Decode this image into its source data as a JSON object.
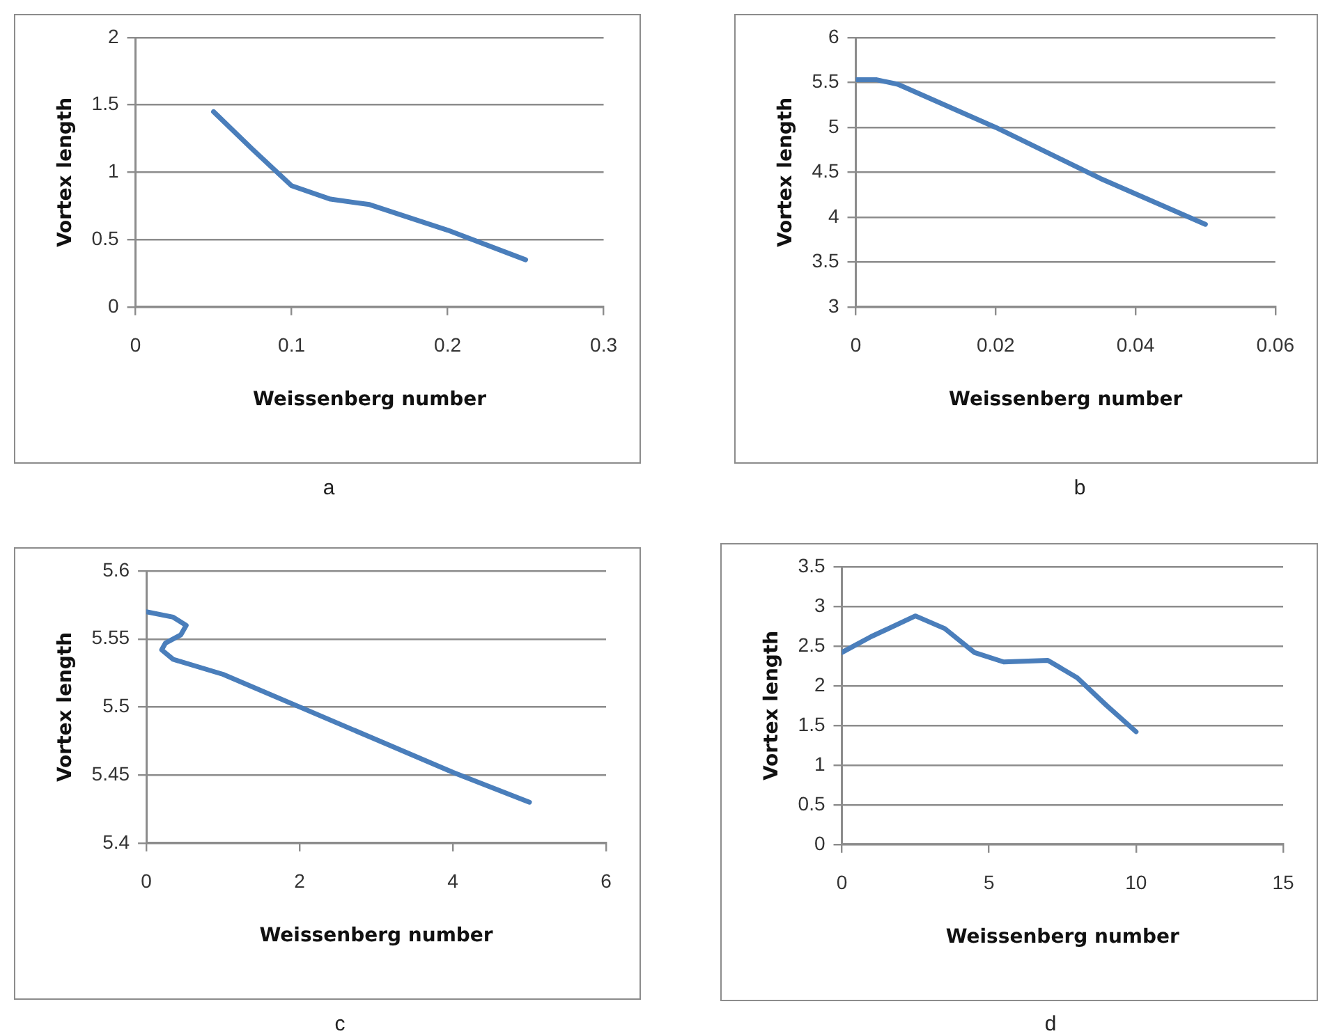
{
  "chart_data": [
    {
      "type": "line",
      "xlabel": "Weissenberg number",
      "ylabel": "Vortex length",
      "x": [
        0.05,
        0.075,
        0.1,
        0.125,
        0.15,
        0.2,
        0.25
      ],
      "series": [
        {
          "color": "#4a7ebb",
          "values": [
            1.45,
            1.17,
            0.9,
            0.8,
            0.76,
            0.57,
            0.35
          ]
        }
      ],
      "xlim": [
        0,
        0.3
      ],
      "xticks": [
        0,
        0.1,
        0.2,
        0.3
      ],
      "ylim": [
        0,
        2
      ],
      "yticks": [
        0,
        0.5,
        1,
        1.5,
        2
      ],
      "grid": "y",
      "marker": "none",
      "line_style": "solid",
      "annotations": [
        "a"
      ]
    },
    {
      "type": "line",
      "xlabel": "Weissenberg number",
      "ylabel": "Vortex length",
      "x": [
        0,
        0.003,
        0.006,
        0.02,
        0.035,
        0.05
      ],
      "series": [
        {
          "color": "#4a7ebb",
          "values": [
            5.53,
            5.53,
            5.48,
            5.0,
            4.43,
            3.92
          ]
        }
      ],
      "xlim": [
        0,
        0.06
      ],
      "xticks": [
        0,
        0.02,
        0.04,
        0.06
      ],
      "ylim": [
        3,
        6
      ],
      "yticks": [
        3,
        3.5,
        4,
        4.5,
        5,
        5.5,
        6
      ],
      "grid": "y",
      "marker": "none",
      "line_style": "solid",
      "annotations": [
        "b"
      ]
    },
    {
      "type": "line",
      "xlabel": "Weissenberg number",
      "ylabel": "Vortex length",
      "x": [
        0,
        0.35,
        0.52,
        0.45,
        0.25,
        0.2,
        0.35,
        1,
        2,
        3,
        4,
        5
      ],
      "series": [
        {
          "color": "#4a7ebb",
          "values": [
            5.57,
            5.566,
            5.56,
            5.553,
            5.547,
            5.542,
            5.535,
            5.524,
            5.5,
            5.476,
            5.452,
            5.43
          ]
        }
      ],
      "xlim": [
        0,
        6
      ],
      "xticks": [
        0,
        2,
        4,
        6
      ],
      "ylim": [
        5.4,
        5.6
      ],
      "yticks": [
        5.4,
        5.45,
        5.5,
        5.55,
        5.6
      ],
      "grid": "y",
      "marker": "none",
      "line_style": "solid",
      "annotations": [
        "c"
      ]
    },
    {
      "type": "line",
      "xlabel": "Weissenberg number",
      "ylabel": "Vortex length",
      "x": [
        0,
        1,
        2.5,
        3.5,
        4.5,
        5.5,
        7,
        8,
        9,
        10
      ],
      "series": [
        {
          "color": "#4a7ebb",
          "values": [
            2.42,
            2.62,
            2.88,
            2.72,
            2.42,
            2.3,
            2.32,
            2.1,
            1.75,
            1.42
          ]
        }
      ],
      "xlim": [
        0,
        15
      ],
      "xticks": [
        0,
        5,
        10,
        15
      ],
      "ylim": [
        0,
        3.5
      ],
      "yticks": [
        0,
        0.5,
        1,
        1.5,
        2,
        2.5,
        3,
        3.5
      ],
      "grid": "y",
      "marker": "none",
      "line_style": "solid",
      "annotations": [
        "d"
      ]
    }
  ]
}
